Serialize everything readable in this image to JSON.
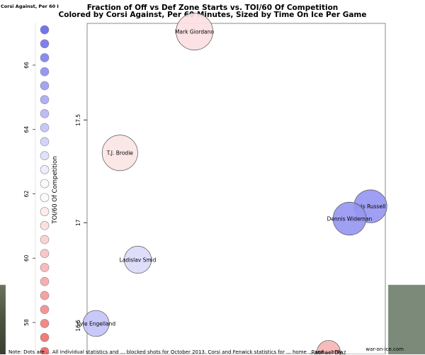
{
  "chart_data": {
    "type": "scatter",
    "title": "Fraction of Off vs Def Zone Starts vs. TOI/60 Of Competition",
    "subtitle": "Colored by Corsi Against, Per 60 Minutes, Sized by Time On Ice Per Game",
    "ylabel": "TOI/60 Of Competition",
    "ylim": [
      16.36,
      17.97
    ],
    "y_ticks": [
      16.5,
      17.0,
      17.5
    ],
    "points": [
      {
        "label": "Mark Giordano",
        "y": 17.93,
        "xpos": "0.36",
        "corsi": 61.0,
        "toi": 1.0
      },
      {
        "label": "T.J. Brodie",
        "y": 17.34,
        "xpos": "0.11",
        "corsi": 61.2,
        "toi": 0.95
      },
      {
        "label": "Kris Russell",
        "y": 17.08,
        "xpos": "0.95",
        "corsi": 65.8,
        "toi": 0.85
      },
      {
        "label": "Dennis Wideman",
        "y": 17.02,
        "xpos": "0.88",
        "corsi": 65.8,
        "toi": 0.85
      },
      {
        "label": "Ladislav Smid",
        "y": 16.82,
        "xpos": "0.17",
        "corsi": 63.4,
        "toi": 0.62
      },
      {
        "label": "Kyle Engelland",
        "y": 16.51,
        "xpos": "0.03",
        "corsi": 64.2,
        "toi": 0.58
      },
      {
        "label": "Raphael Diaz",
        "y": 16.37,
        "xpos": "0.81",
        "corsi": 59.5,
        "toi": 0.48
      }
    ],
    "legend": {
      "title": "Corsi Against, Per 60 I",
      "axis_ticks": [
        58,
        60,
        62,
        64,
        66
      ],
      "range": [
        57.1,
        67.1
      ],
      "count": 24,
      "low_color": "#f07070",
      "mid_color": "#ffffff",
      "high_color": "#7373ee"
    }
  },
  "credit": "war-on-ice.com",
  "footnote": "Note: Dots are ... All individual statistics and ... blocked shots for October 2013. Corsi and Fenwick statistics for ... home ... and ... only"
}
